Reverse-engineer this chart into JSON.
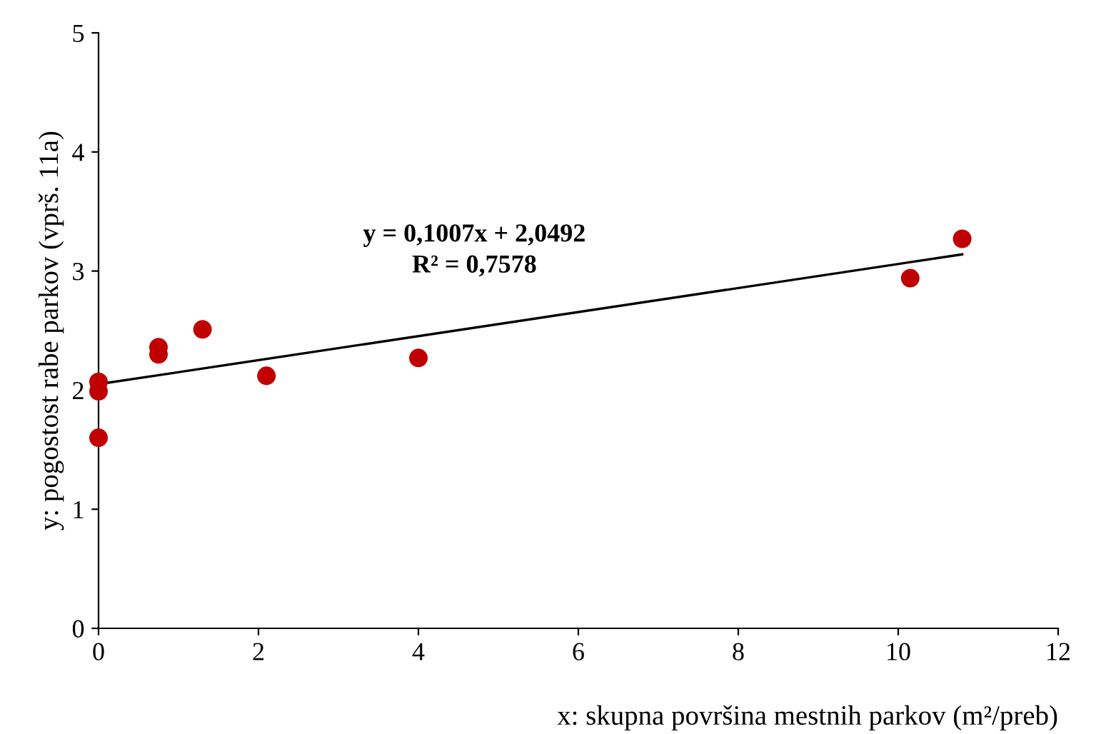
{
  "chart_data": {
    "type": "scatter",
    "xlabel": "x: skupna površina mestnih parkov (m²/preb)",
    "ylabel": "y: pogostost rabe parkov (vprš. 11a)",
    "annotations": [
      "y = 0,1007x + 2,0492",
      "R² = 0,7578"
    ],
    "series": [
      {
        "color": "#c00000",
        "marker": "circle",
        "x": [
          0,
          0,
          0,
          0.75,
          0.75,
          1.3,
          2.1,
          4.0,
          10.15,
          10.8
        ],
        "values": [
          2.07,
          1.99,
          1.6,
          2.36,
          2.3,
          2.51,
          2.12,
          2.27,
          2.94,
          3.27
        ]
      },
      {
        "type": "line",
        "color": "#000000",
        "marker": "none",
        "x": [
          0,
          10.8
        ],
        "values": [
          2.05,
          3.14
        ]
      }
    ],
    "xlim": [
      0,
      12
    ],
    "ylim": [
      0,
      5
    ],
    "xticks": [
      0,
      2,
      4,
      6,
      8,
      10,
      12
    ],
    "yticks": [
      0,
      1,
      2,
      3,
      4,
      5
    ],
    "grid": false,
    "legend": false
  }
}
